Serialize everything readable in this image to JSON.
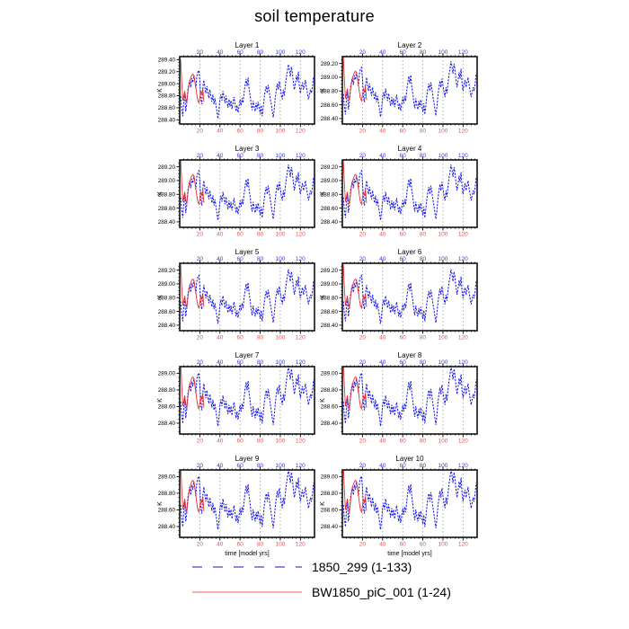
{
  "title": "soil temperature",
  "xlabel": "time [model yrs]",
  "ylabel": "K",
  "legend": {
    "items": [
      {
        "label": "1850_299 (1-133)",
        "color": "#8a8ae0",
        "style": "dashed"
      },
      {
        "label": "BW1850_piC_001 (1-24)",
        "color": "#f29090",
        "style": "solid"
      }
    ]
  },
  "colors": {
    "series_blue": "#1a1ae6",
    "series_red": "#e83030",
    "top_tick_labels": "#3b3bd6",
    "bottom_tick_labels": "#e05555",
    "grid": "#9a9a9a",
    "frame": "#111111"
  },
  "chart_data": {
    "type": "line",
    "x_ticks": [
      20,
      40,
      60,
      80,
      100,
      120
    ],
    "x_range": [
      0,
      134
    ],
    "series_names": [
      "1850_299 (1-133)",
      "BW1850_piC_001 (1-24)"
    ],
    "base_anomaly_blue": [
      -0.05,
      -0.25,
      -0.38,
      -0.15,
      0.02,
      -0.3,
      -0.18,
      0.05,
      0.15,
      0.22,
      0.1,
      0.25,
      0.18,
      0.3,
      0.22,
      0.08,
      0.28,
      0.35,
      0.38,
      0.2,
      -0.1,
      -0.18,
      0.08,
      0.22,
      0.1,
      0.0,
      0.12,
      0.02,
      -0.08,
      0.06,
      -0.04,
      -0.14,
      -0.02,
      -0.18,
      -0.08,
      -0.2,
      -0.3,
      -0.42,
      -0.28,
      -0.1,
      -0.02,
      -0.12,
      0.04,
      -0.06,
      -0.16,
      -0.04,
      -0.14,
      -0.24,
      -0.1,
      -0.22,
      -0.12,
      -0.26,
      -0.16,
      -0.06,
      -0.18,
      -0.3,
      -0.2,
      -0.32,
      -0.22,
      -0.1,
      -0.2,
      -0.08,
      -0.16,
      0.0,
      0.14,
      0.24,
      0.12,
      0.26,
      0.08,
      -0.04,
      -0.18,
      -0.28,
      -0.12,
      -0.22,
      -0.3,
      -0.16,
      -0.26,
      -0.14,
      -0.24,
      -0.34,
      -0.2,
      -0.38,
      -0.24,
      -0.08,
      0.04,
      0.12,
      0.0,
      0.14,
      0.04,
      -0.08,
      -0.18,
      -0.3,
      -0.4,
      -0.26,
      -0.08,
      0.06,
      0.16,
      0.06,
      0.2,
      0.1,
      -0.02,
      -0.1,
      0.06,
      -0.04,
      0.12,
      0.26,
      0.36,
      0.48,
      0.4,
      0.28,
      0.44,
      0.34,
      0.18,
      0.06,
      0.16,
      0.3,
      0.2,
      0.36,
      0.12,
      0.0,
      0.1,
      0.18,
      0.06,
      0.14,
      0.22,
      0.1,
      0.0,
      -0.1,
      -0.02,
      0.06,
      0.0,
      0.12,
      0.28
    ],
    "base_anomaly_red": [
      0.56,
      0.2,
      -0.12,
      -0.04,
      0.04,
      -0.08,
      -0.16,
      0.0,
      0.12,
      0.2,
      0.26,
      0.3,
      0.32,
      0.3,
      0.2,
      0.1,
      -0.02,
      -0.12,
      -0.16,
      -0.06,
      0.04,
      -0.02,
      0.08,
      -0.14
    ],
    "layers": [
      {
        "title": "Layer 1",
        "mean": 288.84,
        "scale": 1.0,
        "ylim": [
          288.33,
          289.45
        ],
        "yticks": [
          288.4,
          288.6,
          288.8,
          289.0,
          289.2,
          289.4
        ],
        "show_xlabel": false
      },
      {
        "title": "Layer 2",
        "mean": 288.8,
        "scale": 0.9,
        "ylim": [
          288.32,
          289.3
        ],
        "yticks": [
          288.4,
          288.6,
          288.8,
          289.0,
          289.2
        ],
        "show_xlabel": false
      },
      {
        "title": "Layer 3",
        "mean": 288.8,
        "scale": 0.9,
        "ylim": [
          288.32,
          289.3
        ],
        "yticks": [
          288.4,
          288.6,
          288.8,
          289.0,
          289.2
        ],
        "show_xlabel": false
      },
      {
        "title": "Layer 4",
        "mean": 288.8,
        "scale": 0.9,
        "ylim": [
          288.32,
          289.3
        ],
        "yticks": [
          288.4,
          288.6,
          288.8,
          289.0,
          289.2
        ],
        "show_xlabel": false
      },
      {
        "title": "Layer 5",
        "mean": 288.79,
        "scale": 0.88,
        "ylim": [
          288.32,
          289.3
        ],
        "yticks": [
          288.4,
          288.6,
          288.8,
          289.0,
          289.2
        ],
        "show_xlabel": false
      },
      {
        "title": "Layer 6",
        "mean": 288.79,
        "scale": 0.88,
        "ylim": [
          288.32,
          289.3
        ],
        "yticks": [
          288.4,
          288.6,
          288.8,
          289.0,
          289.2
        ],
        "show_xlabel": false
      },
      {
        "title": "Layer 7",
        "mean": 288.7,
        "scale": 0.8,
        "ylim": [
          288.27,
          289.08
        ],
        "yticks": [
          288.4,
          288.6,
          288.8,
          289.0
        ],
        "show_xlabel": false
      },
      {
        "title": "Layer 8",
        "mean": 288.7,
        "scale": 0.8,
        "ylim": [
          288.27,
          289.08
        ],
        "yticks": [
          288.4,
          288.6,
          288.8,
          289.0
        ],
        "show_xlabel": false
      },
      {
        "title": "Layer 9",
        "mean": 288.7,
        "scale": 0.8,
        "ylim": [
          288.27,
          289.08
        ],
        "yticks": [
          288.4,
          288.6,
          288.8,
          289.0
        ],
        "show_xlabel": true
      },
      {
        "title": "Layer 10",
        "mean": 288.7,
        "scale": 0.8,
        "ylim": [
          288.27,
          289.08
        ],
        "yticks": [
          288.4,
          288.6,
          288.8,
          289.0
        ],
        "show_xlabel": true
      }
    ]
  }
}
